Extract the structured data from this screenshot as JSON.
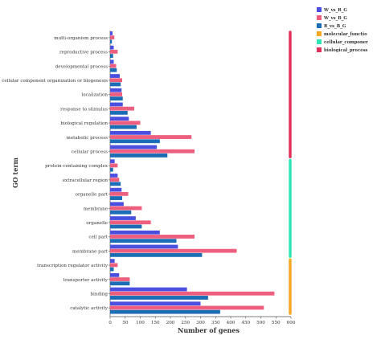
{
  "chart_data": {
    "type": "bar",
    "orientation": "horizontal",
    "xlabel": "Number of genes",
    "ylabel": "GO term",
    "xlim": [
      0,
      600
    ],
    "xticks": [
      "0",
      "50",
      "100",
      "150",
      "200",
      "250",
      "300",
      "350",
      "400",
      "450",
      "500",
      "550",
      "600"
    ],
    "categories": [
      "multi-organism process",
      "reproductive process",
      "developmental process",
      "cellular component organization or biogenesis",
      "localization",
      "response to stimulus",
      "biological regulation",
      "metabolic process",
      "cellular process",
      "protein-containing complex",
      "extracellular region",
      "organelle part",
      "membrane",
      "organelle",
      "cell part",
      "membrane part",
      "transcription regulator activity",
      "transporter activity",
      "binding",
      "catalytic activity"
    ],
    "series": [
      {
        "name": "W_vs_R_G",
        "color": "#4b4fe0",
        "values": [
          8,
          12,
          12,
          32,
          38,
          42,
          62,
          135,
          155,
          15,
          25,
          38,
          45,
          85,
          165,
          225,
          15,
          30,
          255,
          300
        ]
      },
      {
        "name": "W_vs_B_G",
        "color": "#ee5e7e",
        "values": [
          14,
          25,
          20,
          40,
          40,
          80,
          100,
          270,
          280,
          25,
          30,
          60,
          105,
          135,
          280,
          420,
          25,
          65,
          545,
          510
        ]
      },
      {
        "name": "R_vs_B_G",
        "color": "#1b6db5",
        "values": [
          6,
          10,
          22,
          35,
          42,
          58,
          88,
          165,
          190,
          10,
          35,
          40,
          70,
          105,
          220,
          305,
          12,
          65,
          325,
          365
        ]
      }
    ],
    "groups": [
      {
        "name": "biological_process",
        "color": "#e0305a",
        "from": 0,
        "to": 8
      },
      {
        "name": "cellular_componer",
        "color": "#2ee6b4",
        "from": 9,
        "to": 15
      },
      {
        "name": "molecular_functio",
        "color": "#f5a623",
        "from": 16,
        "to": 19
      }
    ],
    "legend": [
      {
        "label": "W_vs_R_G",
        "color": "#4b4fe0"
      },
      {
        "label": "W_vs_B_G",
        "color": "#ee5e7e"
      },
      {
        "label": "R_vs_B_G",
        "color": "#1b6db5"
      },
      {
        "label": "molecular_functio",
        "color": "#f5a623"
      },
      {
        "label": "cellular_componer",
        "color": "#2ee6b4"
      },
      {
        "label": "biological_process",
        "color": "#e0305a"
      }
    ],
    "legend_position": "top-right"
  }
}
